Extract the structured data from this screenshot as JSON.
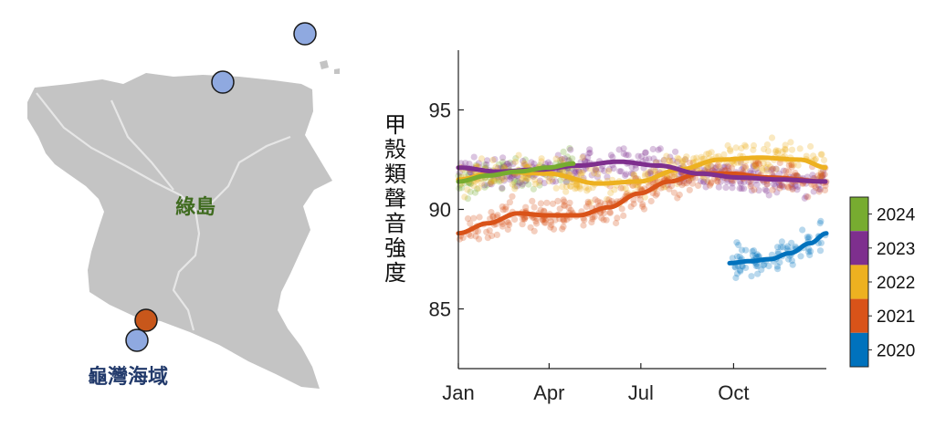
{
  "map": {
    "island_label": "綠島",
    "sea_label": "龜灣海域",
    "colors": {
      "land": "#c4c4c4",
      "road": "#e6e6e6",
      "island_label": "#3f6b1f",
      "sea_label": "#223a6b"
    },
    "markers": [
      {
        "name": "north-outer-site",
        "color": "#8fa9e0"
      },
      {
        "name": "north-site",
        "color": "#8fa9e0"
      },
      {
        "name": "south-site-2021",
        "color": "#c8571b"
      },
      {
        "name": "south-site",
        "color": "#8fa9e0"
      }
    ]
  },
  "chart_data": {
    "type": "scatter",
    "ylabel": "甲殼類聲音強度",
    "xlabel": "",
    "x_ticks": [
      "Jan",
      "Apr",
      "Jul",
      "Oct"
    ],
    "x_tick_days": [
      1,
      91,
      182,
      274
    ],
    "xlim_days": [
      1,
      366
    ],
    "y_ticks": [
      "85",
      "90",
      "95"
    ],
    "y_tick_values": [
      85,
      90,
      95
    ],
    "ylim": [
      82,
      98
    ],
    "grid": false,
    "legend": "colorbar-right",
    "series": [
      {
        "name": "2024",
        "color": "#77ac30",
        "trend_days": [
          1,
          30,
          60,
          90,
          115
        ],
        "trend_values": [
          91.4,
          91.7,
          91.9,
          92.1,
          92.3
        ]
      },
      {
        "name": "2023",
        "color": "#7e2f8e",
        "trend_days": [
          1,
          40,
          80,
          120,
          160,
          200,
          240,
          280,
          320,
          366
        ],
        "trend_values": [
          92.1,
          91.9,
          92.0,
          92.2,
          92.4,
          92.2,
          91.8,
          91.6,
          91.5,
          91.4
        ]
      },
      {
        "name": "2022",
        "color": "#edb120",
        "trend_days": [
          1,
          40,
          90,
          140,
          180,
          220,
          260,
          300,
          340,
          366
        ],
        "trend_values": [
          91.5,
          91.9,
          91.8,
          91.3,
          91.4,
          92.0,
          92.5,
          92.6,
          92.5,
          92.1
        ]
      },
      {
        "name": "2021",
        "color": "#d95319",
        "trend_days": [
          1,
          30,
          60,
          90,
          120,
          150,
          180,
          210,
          240,
          270,
          310,
          366
        ],
        "trend_values": [
          88.8,
          89.3,
          89.8,
          89.7,
          89.7,
          90.1,
          90.8,
          91.4,
          91.8,
          91.8,
          91.6,
          91.4
        ]
      },
      {
        "name": "2020",
        "color": "#0072bd",
        "trend_days": [
          270,
          290,
          310,
          330,
          350,
          366
        ],
        "trend_values": [
          87.3,
          87.4,
          87.5,
          87.8,
          88.3,
          88.8
        ]
      }
    ],
    "colorbar": [
      "2024",
      "2023",
      "2022",
      "2021",
      "2020"
    ]
  }
}
